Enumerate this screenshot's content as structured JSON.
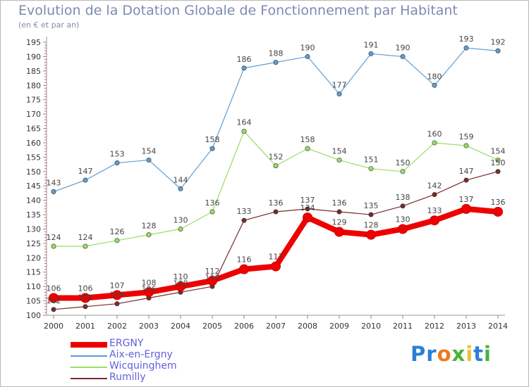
{
  "header": {
    "title": "Evolution de la Dotation Globale de Fonctionnement par Habitant",
    "subtitle": "(en € et par an)"
  },
  "logo": {
    "text": "Proxiti"
  },
  "chart_data": {
    "type": "line",
    "title": "Evolution de la Dotation Globale de Fonctionnement par Habitant",
    "subtitle": "(en € et par an)",
    "xlabel": "",
    "ylabel": "",
    "ylim": [
      100,
      195
    ],
    "y_ticks": [
      100,
      105,
      110,
      115,
      120,
      125,
      130,
      135,
      140,
      145,
      150,
      155,
      160,
      165,
      170,
      175,
      180,
      185,
      190,
      195
    ],
    "grid": "none",
    "legend_placement": "bottom-left",
    "x": [
      "2000",
      "2001",
      "2002",
      "2003",
      "2004",
      "2005",
      "2006",
      "2007",
      "2008",
      "2009",
      "2010",
      "2011",
      "2012",
      "2013",
      "2014"
    ],
    "series": [
      {
        "name": "ERGNY",
        "color": "#ee0000",
        "values": [
          106,
          106,
          107,
          108,
          110,
          112,
          116,
          117,
          134,
          129,
          128,
          130,
          133,
          137,
          136
        ]
      },
      {
        "name": "Aix-en-Ergny",
        "color": "#5f9dcf",
        "values": [
          143,
          147,
          153,
          154,
          144,
          158,
          186,
          188,
          190,
          177,
          191,
          190,
          180,
          193,
          192
        ]
      },
      {
        "name": "Wicquinghem",
        "color": "#99dd66",
        "values": [
          124,
          124,
          126,
          128,
          130,
          136,
          164,
          152,
          158,
          154,
          151,
          150,
          160,
          159,
          154
        ]
      },
      {
        "name": "Rumilly",
        "color": "#7a2a2a",
        "values": [
          102,
          103,
          104,
          106,
          108,
          110,
          133,
          136,
          137,
          136,
          135,
          138,
          142,
          147,
          150
        ]
      }
    ]
  }
}
